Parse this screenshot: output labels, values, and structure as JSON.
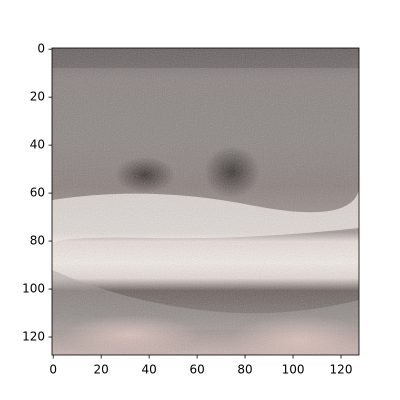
{
  "chart_data": {
    "type": "image",
    "xlim": [
      -0.5,
      127.5
    ],
    "ylim": [
      127.5,
      -0.5
    ],
    "xticks": [
      0,
      20,
      40,
      60,
      80,
      100,
      120
    ],
    "yticks": [
      0,
      20,
      40,
      60,
      80,
      100,
      120
    ]
  }
}
